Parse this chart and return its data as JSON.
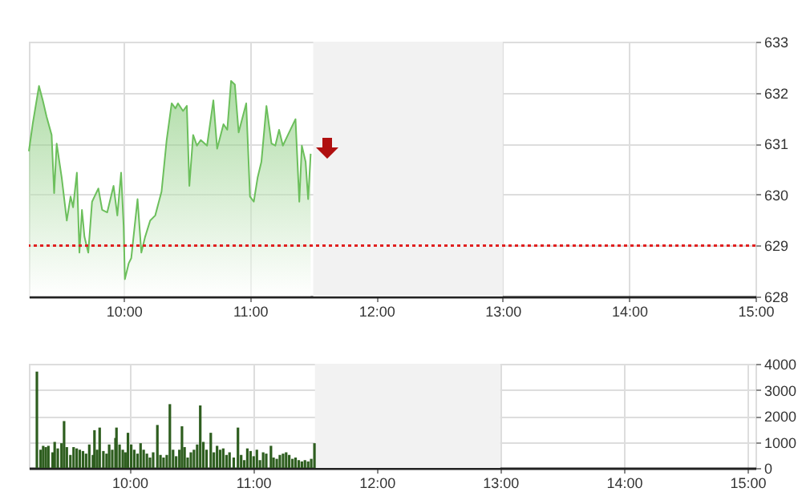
{
  "chart_data": [
    {
      "type": "area",
      "x": [
        9.25,
        9.28,
        9.33,
        9.36,
        9.39,
        9.43,
        9.45,
        9.47,
        9.51,
        9.55,
        9.58,
        9.6,
        9.63,
        9.65,
        9.67,
        9.69,
        9.72,
        9.75,
        9.8,
        9.83,
        9.87,
        9.92,
        9.95,
        9.98,
        10.0,
        10.01,
        10.04,
        10.06,
        10.11,
        10.14,
        10.17,
        10.21,
        10.25,
        10.3,
        10.34,
        10.38,
        10.41,
        10.43,
        10.47,
        10.5,
        10.52,
        10.55,
        10.58,
        10.61,
        10.66,
        10.71,
        10.74,
        10.79,
        10.82,
        10.85,
        10.88,
        10.91,
        10.97,
        11.0,
        11.03,
        11.06,
        11.09,
        11.13,
        11.17,
        11.2,
        11.23,
        11.26,
        11.3,
        11.36,
        11.39,
        11.41,
        11.44,
        11.46,
        11.48
      ],
      "series": [
        {
          "color": "#6cbf5c",
          "values": [
            630.85,
            631.38,
            632.13,
            631.85,
            631.53,
            631.17,
            630.03,
            631.0,
            630.33,
            629.49,
            629.96,
            629.75,
            630.43,
            628.86,
            629.7,
            629.17,
            628.86,
            629.86,
            630.12,
            629.7,
            629.65,
            630.17,
            629.59,
            630.43,
            629.38,
            628.34,
            628.65,
            628.75,
            629.91,
            628.86,
            629.17,
            629.49,
            629.59,
            630.06,
            631.06,
            631.79,
            631.69,
            631.79,
            631.64,
            631.74,
            630.17,
            631.17,
            630.96,
            631.07,
            630.96,
            631.85,
            630.9,
            631.38,
            631.27,
            632.23,
            632.16,
            631.22,
            631.79,
            629.96,
            629.86,
            630.33,
            630.64,
            631.74,
            631.0,
            630.96,
            631.27,
            630.96,
            631.17,
            631.48,
            629.86,
            630.96,
            630.64,
            629.91,
            630.8
          ]
        }
      ],
      "xlim": [
        9.25,
        15
      ],
      "xticks": [
        {
          "value": 10,
          "label": "10:00"
        },
        {
          "value": 11,
          "label": "11:00"
        },
        {
          "value": 12,
          "label": "12:00"
        },
        {
          "value": 13,
          "label": "13:00"
        },
        {
          "value": 14,
          "label": "14:00"
        },
        {
          "value": 15,
          "label": "15:00"
        }
      ],
      "ylim": [
        628,
        633
      ],
      "yticks": [
        628,
        629,
        630,
        631,
        632,
        633
      ],
      "ref_lines": [
        {
          "axis": "y",
          "value": 629,
          "color": "#e02020",
          "line_style": "dotted"
        }
      ],
      "bands": [
        {
          "axis": "x",
          "from": 11.5,
          "to": 13,
          "color": "#f2f2f2"
        }
      ],
      "grid": true,
      "marker": "none"
    },
    {
      "type": "bar",
      "x": [
        9.25,
        9.28,
        9.301,
        9.322,
        9.343,
        9.377,
        9.394,
        9.419,
        9.449,
        9.47,
        9.492,
        9.521,
        9.547,
        9.572,
        9.597,
        9.623,
        9.648,
        9.674,
        9.703,
        9.716,
        9.737,
        9.758,
        9.788,
        9.814,
        9.835,
        9.86,
        9.886,
        9.894,
        9.919,
        9.945,
        9.966,
        9.987,
        10.013,
        10.038,
        10.064,
        10.089,
        10.114,
        10.14,
        10.165,
        10.191,
        10.225,
        10.25,
        10.275,
        10.301,
        10.326,
        10.352,
        10.377,
        10.403,
        10.424,
        10.445,
        10.47,
        10.496,
        10.521,
        10.547,
        10.572,
        10.597,
        10.623,
        10.657,
        10.682,
        10.708,
        10.733,
        10.758,
        10.784,
        10.809,
        10.843,
        10.877,
        10.903,
        10.928,
        10.953,
        10.979,
        11.004,
        11.03,
        11.055,
        11.081,
        11.106,
        11.144,
        11.165,
        11.191,
        11.216,
        11.242,
        11.267,
        11.292,
        11.318,
        11.343,
        11.369,
        11.394,
        11.419,
        11.445,
        11.47,
        11.496
      ],
      "series": [
        {
          "color": "#2e5e1f",
          "values": [
            3700,
            700,
            850,
            800,
            850,
            600,
            1000,
            750,
            950,
            1800,
            800,
            500,
            800,
            750,
            700,
            650,
            550,
            900,
            500,
            1450,
            700,
            1550,
            650,
            550,
            900,
            700,
            1150,
            1550,
            900,
            700,
            600,
            1350,
            900,
            700,
            550,
            950,
            700,
            550,
            400,
            600,
            1650,
            500,
            400,
            500,
            2450,
            700,
            450,
            700,
            1600,
            800,
            400,
            600,
            700,
            900,
            2400,
            1000,
            700,
            1350,
            600,
            850,
            700,
            750,
            500,
            600,
            400,
            1550,
            500,
            300,
            750,
            650,
            450,
            700,
            300,
            600,
            550,
            850,
            400,
            350,
            500,
            550,
            600,
            500,
            350,
            400,
            300,
            250,
            300,
            250,
            350,
            950
          ]
        }
      ],
      "xlim": [
        9.25,
        15
      ],
      "xticks": [
        {
          "value": 10,
          "label": "10:00"
        },
        {
          "value": 11,
          "label": "11:00"
        },
        {
          "value": 12,
          "label": "12:00"
        },
        {
          "value": 13,
          "label": "13:00"
        },
        {
          "value": 14,
          "label": "14:00"
        },
        {
          "value": 15,
          "label": "15:00"
        }
      ],
      "ylim": [
        0,
        4000
      ],
      "yticks": [
        0,
        1000,
        2000,
        3000,
        4000
      ],
      "bands": [
        {
          "axis": "x",
          "from": 11.5,
          "to": 13,
          "color": "#f2f2f2"
        }
      ],
      "grid": true
    }
  ]
}
